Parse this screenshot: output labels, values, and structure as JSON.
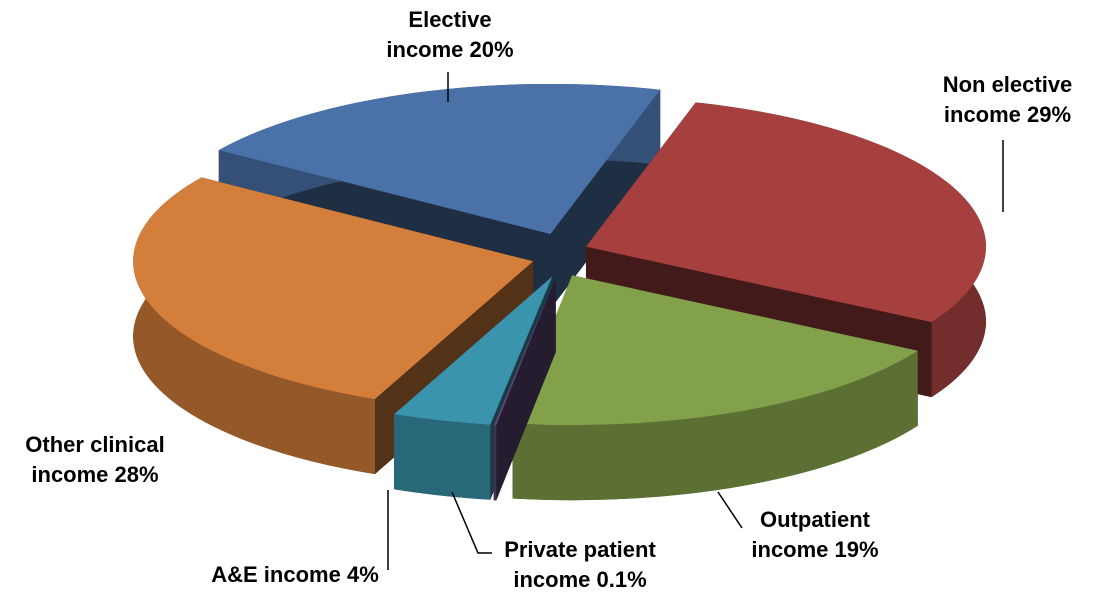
{
  "chart_data": {
    "type": "pie",
    "categories": [
      "Elective income",
      "Non elective income",
      "Outpatient income",
      "Private patient income",
      "A&E income",
      "Other clinical income"
    ],
    "values": [
      20,
      29,
      19,
      0.1,
      4,
      28
    ],
    "value_labels": [
      "20%",
      "29%",
      "19%",
      "0.1%",
      "4%",
      "28%"
    ],
    "colors": [
      "#4a72a8",
      "#a5403f",
      "#83a04a",
      "#5c4778",
      "#3b94ad",
      "#d37e3a"
    ]
  }
}
